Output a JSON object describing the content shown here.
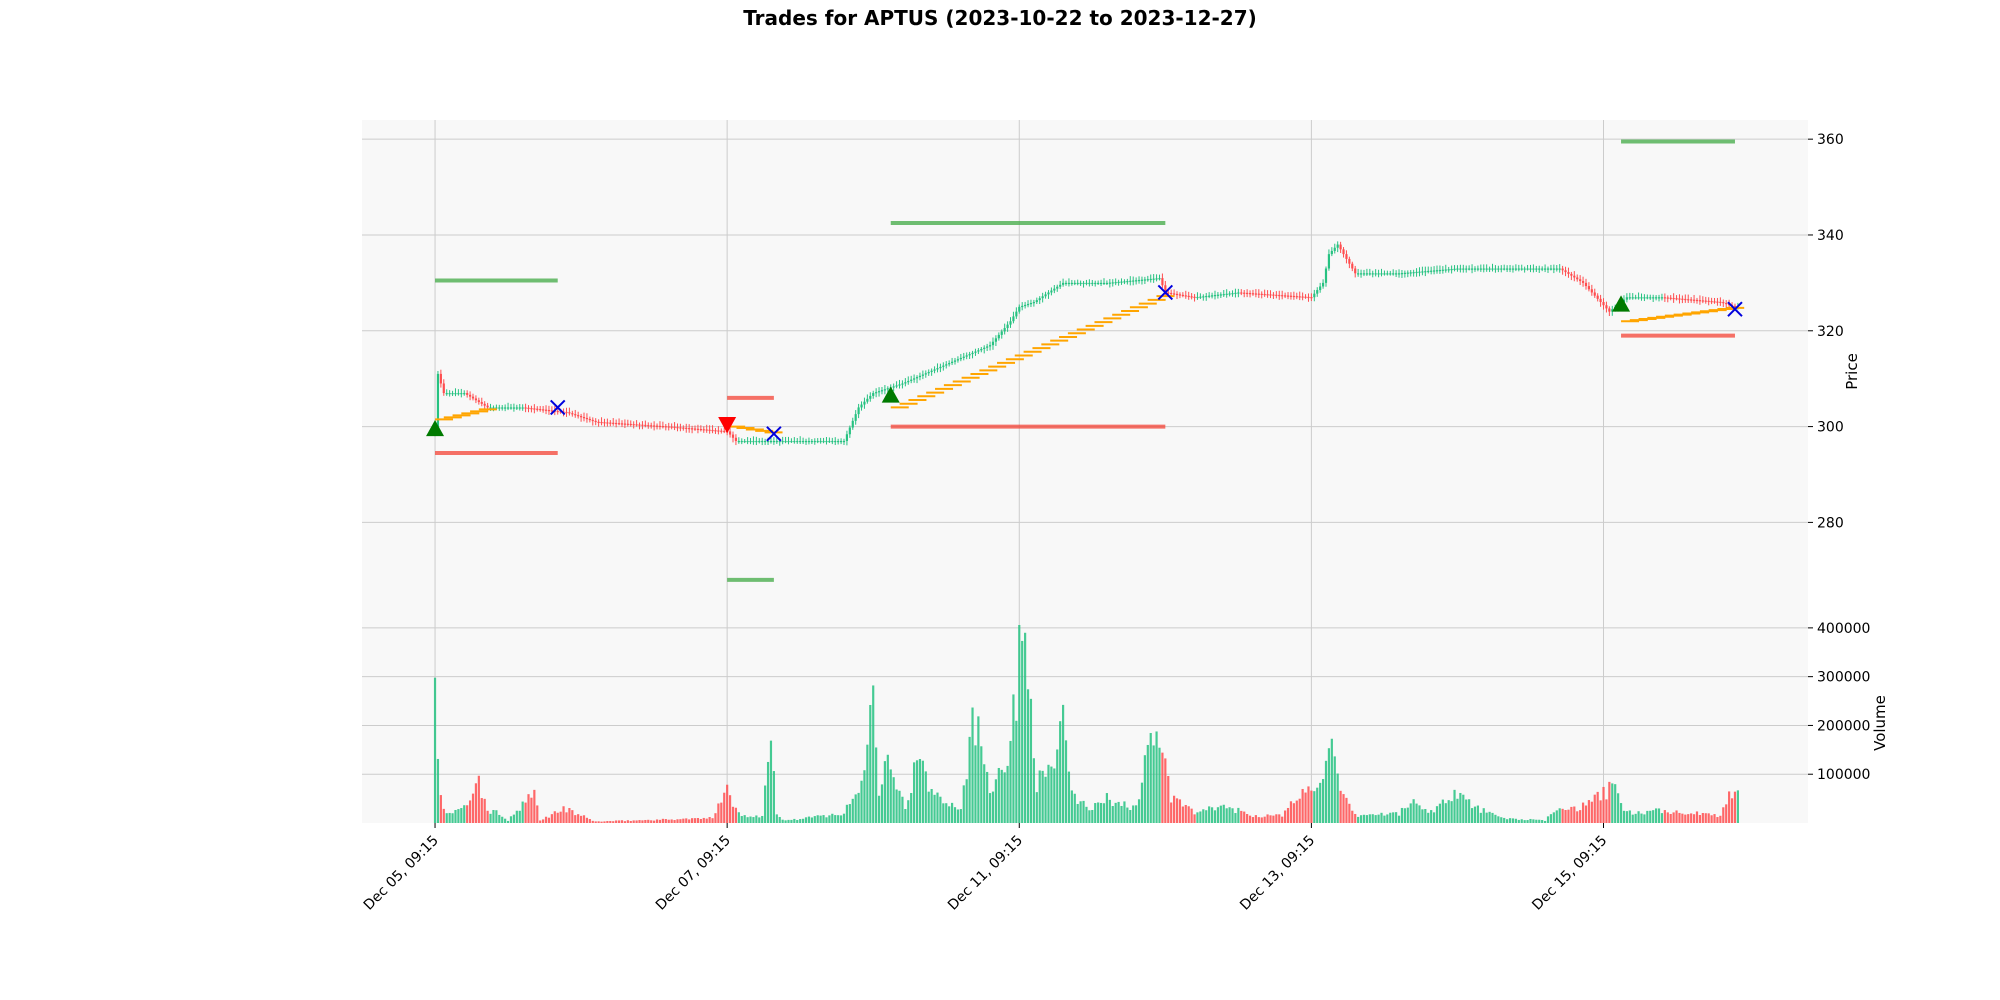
{
  "chart_data": {
    "type": "candlestick",
    "title": "Trades for APTUS (2023-10-22 to 2023-12-27)",
    "price_panel": {
      "ylabel": "Price",
      "ylim": [
        259,
        364
      ],
      "yticks": [
        280,
        300,
        320,
        340,
        360
      ],
      "grid": true
    },
    "volume_panel": {
      "ylabel": "Volume",
      "ylim": [
        0,
        410000
      ],
      "yticks": [
        100000,
        200000,
        300000,
        400000
      ],
      "grid": true
    },
    "x_range": [
      -25,
      470
    ],
    "x_ticks": [
      {
        "x": 0,
        "label": "Dec 05, 09:15"
      },
      {
        "x": 100,
        "label": "Dec 07, 09:15"
      },
      {
        "x": 200,
        "label": "Dec 11, 09:15"
      },
      {
        "x": 300,
        "label": "Dec 13, 09:15"
      },
      {
        "x": 400,
        "label": "Dec 15, 09:15"
      }
    ],
    "candle_keyframes": [
      [
        0,
        299
      ],
      [
        1,
        311
      ],
      [
        3,
        307
      ],
      [
        10,
        307
      ],
      [
        18,
        304
      ],
      [
        30,
        304
      ],
      [
        45,
        303
      ],
      [
        55,
        301
      ],
      [
        80,
        300
      ],
      [
        100,
        299
      ],
      [
        103,
        297
      ],
      [
        116,
        297
      ],
      [
        130,
        297
      ],
      [
        140,
        297
      ],
      [
        145,
        304
      ],
      [
        150,
        307
      ],
      [
        160,
        309
      ],
      [
        175,
        313
      ],
      [
        190,
        317
      ],
      [
        197,
        322
      ],
      [
        200,
        325
      ],
      [
        205,
        326
      ],
      [
        215,
        330
      ],
      [
        230,
        330
      ],
      [
        248,
        331
      ],
      [
        250,
        328
      ],
      [
        260,
        327
      ],
      [
        275,
        328
      ],
      [
        300,
        327
      ],
      [
        304,
        330
      ],
      [
        306,
        336
      ],
      [
        309,
        338
      ],
      [
        315,
        332
      ],
      [
        330,
        332
      ],
      [
        350,
        333
      ],
      [
        370,
        333
      ],
      [
        385,
        333
      ],
      [
        393,
        330
      ],
      [
        402,
        324
      ],
      [
        408,
        327
      ],
      [
        420,
        327
      ],
      [
        440,
        326
      ],
      [
        445,
        325
      ]
    ],
    "volume_keyframes": [
      [
        0,
        280000
      ],
      [
        1,
        150000
      ],
      [
        2,
        70000
      ],
      [
        3,
        25000
      ],
      [
        6,
        20000
      ],
      [
        10,
        30000
      ],
      [
        12,
        55000
      ],
      [
        15,
        80000
      ],
      [
        18,
        25000
      ],
      [
        22,
        20000
      ],
      [
        25,
        5000
      ],
      [
        34,
        60000
      ],
      [
        36,
        5000
      ],
      [
        44,
        30000
      ],
      [
        48,
        20000
      ],
      [
        55,
        3000
      ],
      [
        95,
        10000
      ],
      [
        100,
        85000
      ],
      [
        102,
        35000
      ],
      [
        105,
        15000
      ],
      [
        112,
        15000
      ],
      [
        115,
        175000
      ],
      [
        117,
        15000
      ],
      [
        120,
        5000
      ],
      [
        140,
        20000
      ],
      [
        146,
        80000
      ],
      [
        150,
        265000
      ],
      [
        152,
        70000
      ],
      [
        155,
        175000
      ],
      [
        158,
        80000
      ],
      [
        161,
        30000
      ],
      [
        165,
        130000
      ],
      [
        170,
        65000
      ],
      [
        180,
        30000
      ],
      [
        184,
        205000
      ],
      [
        187,
        170000
      ],
      [
        190,
        75000
      ],
      [
        196,
        140000
      ],
      [
        199,
        250000
      ],
      [
        200,
        400000
      ],
      [
        203,
        355000
      ],
      [
        206,
        80000
      ],
      [
        212,
        130000
      ],
      [
        215,
        200000
      ],
      [
        218,
        55000
      ],
      [
        225,
        30000
      ],
      [
        230,
        50000
      ],
      [
        235,
        40000
      ],
      [
        240,
        30000
      ],
      [
        245,
        185000
      ],
      [
        248,
        175000
      ],
      [
        252,
        50000
      ],
      [
        256,
        40000
      ],
      [
        260,
        20000
      ],
      [
        270,
        35000
      ],
      [
        280,
        15000
      ],
      [
        290,
        15000
      ],
      [
        296,
        60000
      ],
      [
        300,
        70000
      ],
      [
        305,
        120000
      ],
      [
        307,
        140000
      ],
      [
        310,
        60000
      ],
      [
        315,
        15000
      ],
      [
        330,
        20000
      ],
      [
        335,
        45000
      ],
      [
        340,
        20000
      ],
      [
        350,
        65000
      ],
      [
        355,
        35000
      ],
      [
        365,
        10000
      ],
      [
        380,
        5000
      ],
      [
        385,
        35000
      ],
      [
        392,
        30000
      ],
      [
        400,
        60000
      ],
      [
        404,
        75000
      ],
      [
        407,
        25000
      ],
      [
        410,
        20000
      ],
      [
        420,
        25000
      ],
      [
        440,
        15000
      ],
      [
        443,
        60000
      ],
      [
        446,
        75000
      ]
    ],
    "entry_markers": [
      {
        "x": 0,
        "price": 299.5,
        "side": "buy"
      },
      {
        "x": 100,
        "price": 300.5,
        "side": "sell"
      },
      {
        "x": 156,
        "price": 306.5,
        "side": "buy"
      },
      {
        "x": 406,
        "price": 325.5,
        "side": "buy"
      }
    ],
    "exit_markers": [
      {
        "x": 42,
        "price": 304
      },
      {
        "x": 116,
        "price": 298.5
      },
      {
        "x": 250,
        "price": 328
      },
      {
        "x": 445,
        "price": 324.5
      }
    ],
    "take_profit_lines": [
      {
        "x_start": 0,
        "x_end": 42,
        "price": 330.5
      },
      {
        "x_start": 100,
        "x_end": 116,
        "price": 268
      },
      {
        "x_start": 156,
        "x_end": 250,
        "price": 342.5
      },
      {
        "x_start": 406,
        "x_end": 445,
        "price": 359.5
      }
    ],
    "stop_loss_lines": [
      {
        "x_start": 0,
        "x_end": 42,
        "price": 294.5
      },
      {
        "x_start": 100,
        "x_end": 116,
        "price": 306
      },
      {
        "x_start": 156,
        "x_end": 250,
        "price": 300
      },
      {
        "x_start": 406,
        "x_end": 445,
        "price": 319
      }
    ],
    "trailing_stop_segments": [
      {
        "x_start": 0,
        "x_end": 18,
        "price_start": 301.5,
        "price_end": 304
      },
      {
        "x_start": 100,
        "x_end": 116,
        "price_start": 300,
        "price_end": 298.5
      },
      {
        "x_start": 156,
        "x_end": 250,
        "price_start": 304,
        "price_end": 328
      },
      {
        "x_start": 406,
        "x_end": 445,
        "price_start": 322,
        "price_end": 325
      }
    ],
    "colors": {
      "up": "#26c281",
      "down": "#ff4d4f",
      "take_profit": "#4caf50",
      "stop_loss": "#f44336",
      "trailing_stop": "#ffa500",
      "entry_buy": "#007a00",
      "entry_sell": "#ff0000",
      "exit": "#0000dd",
      "panel_bg": "#f8f8f8",
      "grid": "#cccccc"
    }
  }
}
